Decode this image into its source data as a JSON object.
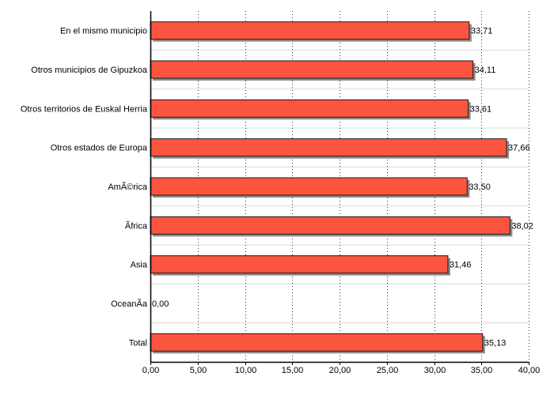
{
  "chart_data": {
    "type": "bar",
    "orientation": "horizontal",
    "categories": [
      "En el mismo municipio",
      "Otros municipios de Gipuzkoa",
      "Otros territorios de Euskal Herria",
      "Otros estados de Europa",
      "AmÃ©rica",
      "Ãfrica",
      "Asia",
      "OceanÃ­a",
      "Total"
    ],
    "values": [
      33.71,
      34.11,
      33.61,
      37.66,
      33.5,
      38.02,
      31.46,
      0.0,
      35.13
    ],
    "value_labels": [
      "33,71",
      "34,11",
      "33,61",
      "37,66",
      "33,50",
      "38,02",
      "31,46",
      "0,00",
      "35,13"
    ],
    "x_ticks": [
      "0,00",
      "5,00",
      "10,00",
      "15,00",
      "20,00",
      "25,00",
      "30,00",
      "35,00",
      "40,00"
    ],
    "xlim": [
      0,
      40
    ],
    "title": "",
    "xlabel": "",
    "ylabel": "",
    "grid": "vertical-dotted",
    "legend": "none",
    "colors": {
      "bar_fill": "#fb553f",
      "bar_stroke": "#1a1a1a",
      "bar_shadow": "#8a8a8a",
      "axis": "#000000",
      "grid": "#333333",
      "row_separator": "#d8d8d8",
      "text": "#000000"
    }
  }
}
